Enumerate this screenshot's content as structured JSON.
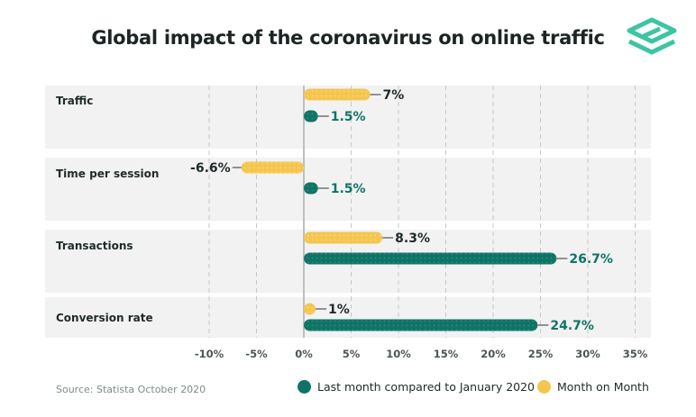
{
  "title": "Global impact of the coronavirus on online traffic",
  "source": "Source: Statista October 2020",
  "logo_icon": "statista-logo-icon",
  "colors": {
    "last_month": "#0f7466",
    "month_on_month": "#f4c64e",
    "band": "#f2f2f2",
    "grid": "#c7c7c7",
    "zero_line": "#b9c0c0",
    "logo": "#3cc5a3"
  },
  "chart_data": {
    "type": "bar",
    "orientation": "horizontal",
    "title": "Global impact of the coronavirus on online traffic",
    "categories": [
      "Traffic",
      "Time per session",
      "Transactions",
      "Conversion rate"
    ],
    "series": [
      {
        "name": "Month on Month",
        "values": [
          7,
          -6.6,
          8.3,
          1
        ],
        "labels": [
          "7%",
          "-6.6%",
          "8.3%",
          "1%"
        ]
      },
      {
        "name": "Last month compared to January 2020",
        "values": [
          1.5,
          1.5,
          26.7,
          24.7
        ],
        "labels": [
          "1.5%",
          "1.5%",
          "26.7%",
          "24.7%"
        ]
      }
    ],
    "xlim": [
      -10,
      35
    ],
    "xticks": [
      -10,
      -5,
      0,
      5,
      10,
      15,
      20,
      25,
      30,
      35
    ],
    "xtick_labels": [
      "-10%",
      "-5%",
      "0%",
      "5%",
      "10%",
      "15%",
      "20%",
      "25%",
      "30%",
      "35%"
    ],
    "grid": true,
    "legend_position": "bottom-right"
  },
  "legend": {
    "last_month": "Last month compared to January 2020",
    "month_on_month": "Month on Month"
  }
}
